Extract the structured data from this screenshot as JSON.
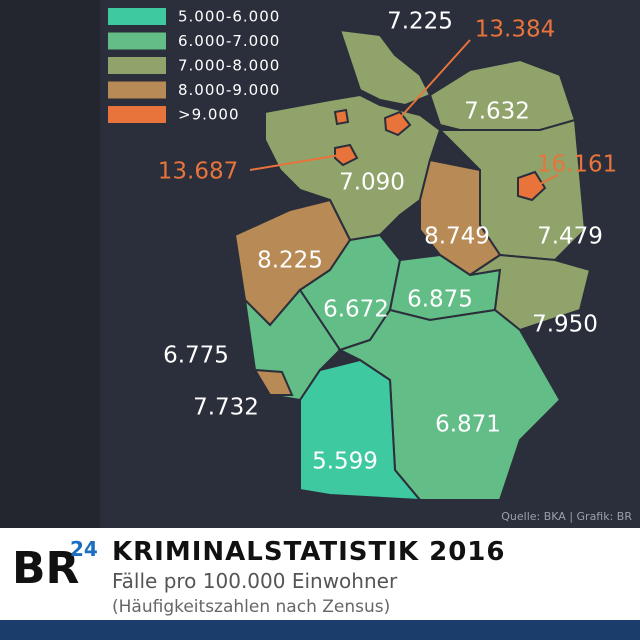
{
  "legend": {
    "items": [
      {
        "label": "5.000-6.000",
        "color": "#3fc9a0"
      },
      {
        "label": "6.000-7.000",
        "color": "#62bd86"
      },
      {
        "label": "7.000-8.000",
        "color": "#8fa36b"
      },
      {
        "label": "8.000-9.000",
        "color": "#b88a55"
      },
      {
        "label": ">9.000",
        "color": "#e8743b"
      }
    ]
  },
  "map": {
    "labels": [
      "7.225",
      "13.384",
      "7.632",
      "16.161",
      "13.687",
      "7.090",
      "8.749",
      "7.479",
      "8.225",
      "6.672",
      "6.875",
      "7.950",
      "6.775",
      "7.732",
      "6.871",
      "5.599"
    ],
    "source": "Quelle: BKA | Grafik: BR"
  },
  "footer": {
    "logo": "BR",
    "logo_suffix": "24",
    "title": "KRIMINALSTATISTIK 2016",
    "subtitle": "Fälle pro 100.000 Einwohner",
    "note": "(Häufigkeitszahlen nach Zensus)"
  }
}
